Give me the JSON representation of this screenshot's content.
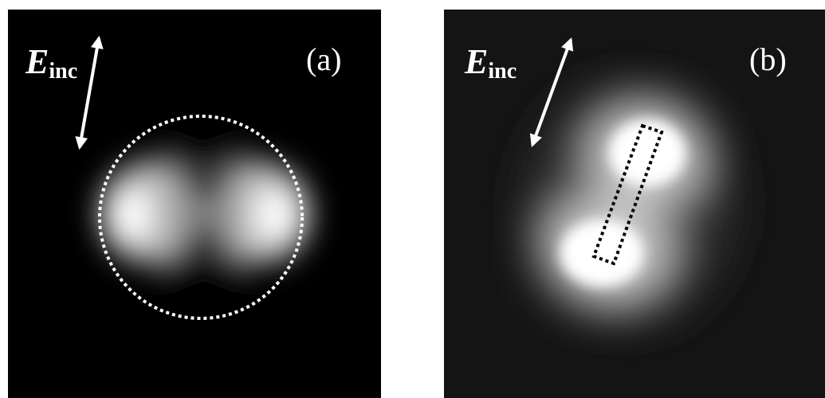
{
  "panels": [
    {
      "label": "(a)",
      "field_symbol": "E",
      "field_subscript": "inc"
    },
    {
      "label": "(b)",
      "field_symbol": "E",
      "field_subscript": "inc"
    }
  ]
}
